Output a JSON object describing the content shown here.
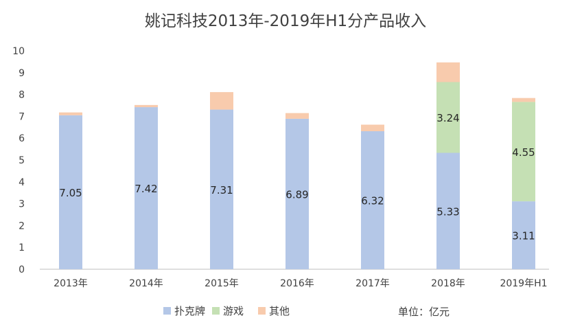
{
  "chart_data": {
    "type": "bar",
    "stacked": true,
    "title": "姚记科技2013年-2019年H1分产品收入",
    "categories": [
      "2013年",
      "2014年",
      "2015年",
      "2016年",
      "2017年",
      "2018年",
      "2019年H1"
    ],
    "series": [
      {
        "name": "扑克牌",
        "values": [
          7.05,
          7.42,
          7.31,
          6.89,
          6.32,
          5.33,
          3.11
        ],
        "color": "#b4c7e7",
        "labels": [
          "7.05",
          "7.42",
          "7.31",
          "6.89",
          "6.32",
          "5.33",
          "3.11"
        ]
      },
      {
        "name": "游戏",
        "values": [
          0,
          0,
          0,
          0,
          0,
          3.24,
          4.55
        ],
        "color": "#c5e0b4",
        "labels": [
          "",
          "",
          "",
          "",
          "",
          "3.24",
          "4.55"
        ]
      },
      {
        "name": "其他",
        "values": [
          0.13,
          0.1,
          0.8,
          0.26,
          0.3,
          0.9,
          0.18
        ],
        "color": "#f8cbad",
        "labels": [
          "",
          "",
          "",
          "",
          "",
          "",
          ""
        ]
      }
    ],
    "ylim": [
      0,
      10
    ],
    "yticks": [
      "0",
      "1",
      "2",
      "3",
      "4",
      "5",
      "6",
      "7",
      "8",
      "9",
      "10"
    ],
    "grid": false,
    "legend": "bottom",
    "unit_note": "单位：亿元"
  }
}
